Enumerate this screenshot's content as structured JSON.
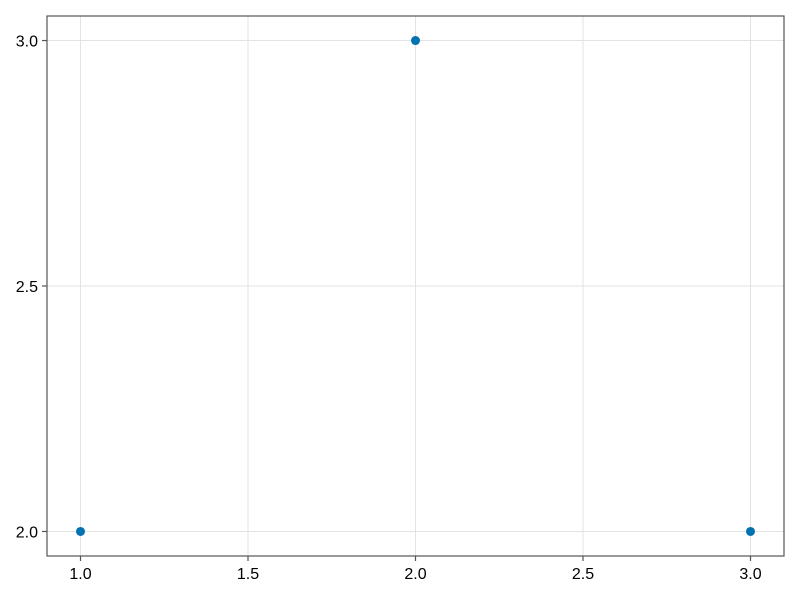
{
  "chart_data": {
    "type": "scatter",
    "title": "",
    "xlabel": "",
    "ylabel": "",
    "x": [
      1,
      2,
      3
    ],
    "y": [
      2,
      3,
      2
    ],
    "xlim": [
      0.9,
      3.1
    ],
    "ylim": [
      1.95,
      3.05
    ],
    "xticks": [
      1.0,
      1.5,
      2.0,
      2.5,
      3.0
    ],
    "xtick_labels": [
      "1.0",
      "1.5",
      "2.0",
      "2.5",
      "3.0"
    ],
    "yticks": [
      2.0,
      2.5,
      3.0
    ],
    "ytick_labels": [
      "2.0",
      "2.5",
      "3.0"
    ],
    "grid": true,
    "marker_color": "#0072b2"
  }
}
